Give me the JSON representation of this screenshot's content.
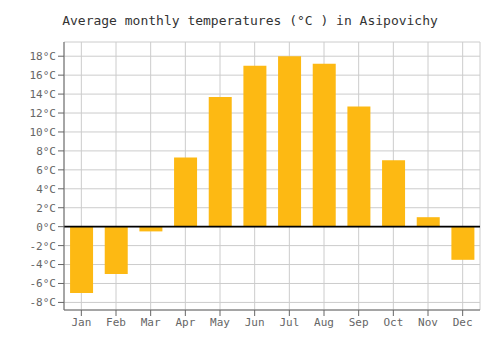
{
  "chart_data": {
    "type": "bar",
    "title": "Average monthly temperatures (°C ) in Asipovichy",
    "categories": [
      "Jan",
      "Feb",
      "Mar",
      "Apr",
      "May",
      "Jun",
      "Jul",
      "Aug",
      "Sep",
      "Oct",
      "Nov",
      "Dec"
    ],
    "values": [
      -7.0,
      -5.0,
      -0.5,
      7.3,
      13.7,
      17.0,
      18.0,
      17.2,
      12.7,
      7.0,
      1.0,
      -3.5
    ],
    "color": "#FDB913",
    "ylim": [
      -8.8,
      19.5
    ],
    "yticks": [
      {
        "value": -8,
        "label": "-8°C"
      },
      {
        "value": -6,
        "label": "-6°C"
      },
      {
        "value": -4,
        "label": "-4°C"
      },
      {
        "value": -2,
        "label": "-2°C"
      },
      {
        "value": 0,
        "label": "0°C"
      },
      {
        "value": 2,
        "label": "2°C"
      },
      {
        "value": 4,
        "label": "4°C"
      },
      {
        "value": 6,
        "label": "6°C"
      },
      {
        "value": 8,
        "label": "8°C"
      },
      {
        "value": 10,
        "label": "10°C"
      },
      {
        "value": 12,
        "label": "12°C"
      },
      {
        "value": 14,
        "label": "14°C"
      },
      {
        "value": 16,
        "label": "16°C"
      },
      {
        "value": 18,
        "label": "18°C"
      }
    ],
    "grid": true
  }
}
